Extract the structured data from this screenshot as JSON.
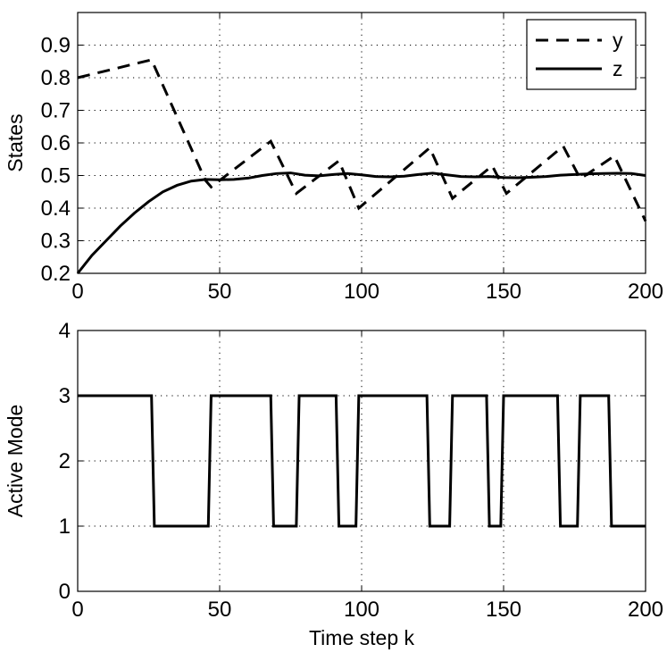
{
  "chart_data": [
    {
      "type": "line",
      "id": "top",
      "title": "",
      "xlabel": "",
      "ylabel": "States",
      "xlim": [
        0,
        200
      ],
      "ylim": [
        0.2,
        1.0
      ],
      "xticks": [
        0,
        50,
        100,
        150,
        200
      ],
      "yticks": [
        0.2,
        0.3,
        0.4,
        0.5,
        0.6,
        0.7,
        0.8,
        0.9
      ],
      "xtick_labels": [
        "0",
        "50",
        "100",
        "150",
        "200"
      ],
      "ytick_labels": [
        "0.2",
        "0.3",
        "0.4",
        "0.5",
        "0.6",
        "0.7",
        "0.8",
        "0.9"
      ],
      "grid": true,
      "legend": {
        "position": "top-right",
        "entries": [
          "y",
          "z"
        ]
      },
      "series": [
        {
          "name": "y",
          "style": "dashed",
          "x": [
            0,
            26,
            45,
            47,
            68,
            77,
            92,
            99,
            124,
            132,
            146,
            151,
            171,
            177,
            189,
            200
          ],
          "y": [
            0.8,
            0.855,
            0.485,
            0.465,
            0.605,
            0.445,
            0.545,
            0.4,
            0.585,
            0.43,
            0.53,
            0.445,
            0.59,
            0.49,
            0.56,
            0.36
          ]
        },
        {
          "name": "z",
          "style": "solid",
          "x": [
            0,
            5,
            10,
            15,
            20,
            25,
            30,
            35,
            40,
            45,
            50,
            55,
            60,
            65,
            70,
            75,
            80,
            85,
            90,
            95,
            100,
            105,
            110,
            115,
            120,
            125,
            130,
            135,
            140,
            145,
            150,
            155,
            160,
            165,
            170,
            175,
            180,
            185,
            190,
            195,
            200
          ],
          "y": [
            0.2,
            0.255,
            0.3,
            0.345,
            0.385,
            0.42,
            0.45,
            0.47,
            0.483,
            0.488,
            0.487,
            0.488,
            0.492,
            0.5,
            0.506,
            0.508,
            0.501,
            0.499,
            0.503,
            0.506,
            0.502,
            0.497,
            0.496,
            0.498,
            0.503,
            0.507,
            0.502,
            0.497,
            0.496,
            0.497,
            0.494,
            0.493,
            0.495,
            0.497,
            0.501,
            0.503,
            0.505,
            0.506,
            0.507,
            0.506,
            0.5
          ]
        }
      ]
    },
    {
      "type": "line",
      "id": "bottom",
      "title": "",
      "xlabel": "Time step k",
      "ylabel": "Active Mode",
      "xlim": [
        0,
        200
      ],
      "ylim": [
        0,
        4
      ],
      "xticks": [
        0,
        50,
        100,
        150,
        200
      ],
      "yticks": [
        0,
        1,
        2,
        3,
        4
      ],
      "xtick_labels": [
        "0",
        "50",
        "100",
        "150",
        "200"
      ],
      "ytick_labels": [
        "0",
        "1",
        "2",
        "3",
        "4"
      ],
      "grid": true,
      "series": [
        {
          "name": "mode",
          "style": "solid",
          "x": [
            0,
            26,
            27,
            46,
            47,
            68,
            69,
            77,
            78,
            91,
            92,
            98,
            99,
            123,
            124,
            131,
            132,
            144,
            145,
            149,
            150,
            169,
            170,
            176,
            177,
            187,
            188,
            200
          ],
          "y": [
            3,
            3,
            1,
            1,
            3,
            3,
            1,
            1,
            3,
            3,
            1,
            1,
            3,
            3,
            1,
            1,
            3,
            3,
            1,
            1,
            3,
            3,
            1,
            1,
            3,
            3,
            1,
            1
          ]
        }
      ]
    }
  ]
}
